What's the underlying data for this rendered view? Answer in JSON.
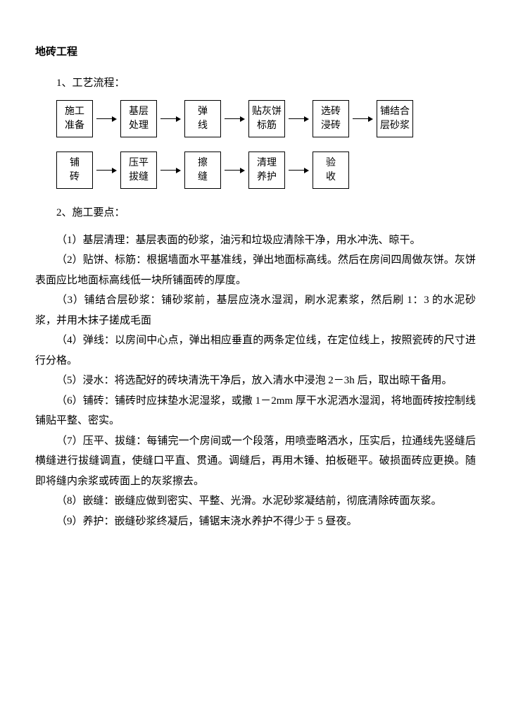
{
  "title": "地砖工程",
  "section1_label": "1、工艺流程：",
  "flowchart": {
    "row1": [
      {
        "line1": "施工",
        "line2": "准备"
      },
      {
        "line1": "基层",
        "line2": "处理"
      },
      {
        "line1": "弹",
        "line2": "线"
      },
      {
        "line1": "贴灰饼",
        "line2": "标筋"
      },
      {
        "line1": "选砖",
        "line2": "浸砖"
      },
      {
        "line1": "铺结合",
        "line2": "层砂浆"
      }
    ],
    "row2": [
      {
        "line1": "铺",
        "line2": "砖"
      },
      {
        "line1": "压平",
        "line2": "拔缝"
      },
      {
        "line1": "擦",
        "line2": "缝"
      },
      {
        "line1": "清理",
        "line2": "养护"
      },
      {
        "line1": "验",
        "line2": "收"
      }
    ]
  },
  "section2_label": "2、施工要点：",
  "points": {
    "p1": "（1）基层清理：基层表面的砂浆，油污和垃圾应清除干净，用水冲洗、晾干。",
    "p2": "（2）贴饼、标筋：根据墙面水平基准线，弹出地面标高线。然后在房间四周做灰饼。灰饼表面应比地面标高线低一块所铺面砖的厚度。",
    "p3": "（3）铺结合层砂浆：铺砂浆前，基层应浇水湿润，刷水泥素浆，然后刷 1：3 的水泥砂浆，并用木抹子搓成毛面",
    "p4": "（4）弹线：以房间中心点，弹出相应垂直的两条定位线，在定位线上，按照瓷砖的尺寸进行分格。",
    "p5": "（5）浸水：将选配好的砖块清洗干净后，放入清水中浸泡 2－3h 后，取出晾干备用。",
    "p6": "（6）铺砖：铺砖时应抹垫水泥湿浆，或撒 1－2mm 厚干水泥洒水湿润，将地面砖按控制线铺贴平整、密实。",
    "p7": "（7）压平、拔缝：每铺完一个房间或一个段落，用喷壶略洒水，压实后，拉通线先竖缝后横缝进行拔缝调直，使缝口平直、贯通。调缝后，再用木锤、拍板砸平。破损面砖应更换。随即将缝内余浆或砖面上的灰浆擦去。",
    "p8": "（8）嵌缝：嵌缝应做到密实、平整、光滑。水泥砂浆凝结前，彻底清除砖面灰浆。",
    "p9": "（9）养护：嵌缝砂浆终凝后，铺锯末浇水养护不得少于 5 昼夜。"
  }
}
